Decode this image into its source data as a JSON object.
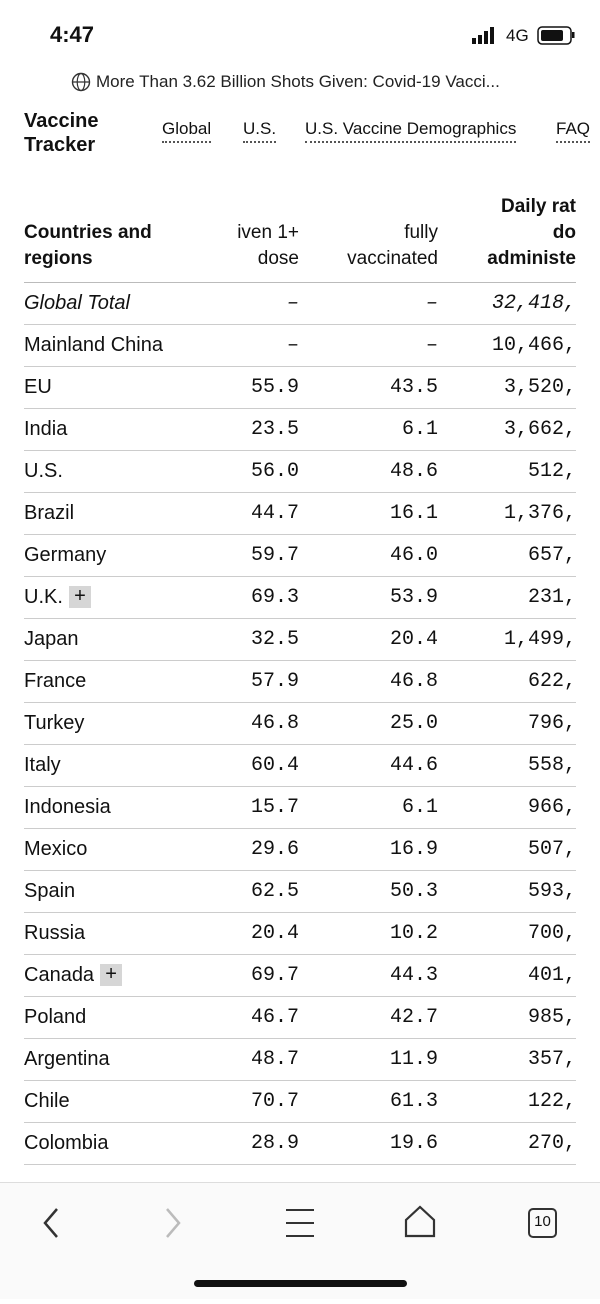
{
  "status": {
    "time": "4:47",
    "network": "4G"
  },
  "url_bar": {
    "title": "More Than 3.62 Billion Shots Given: Covid-19 Vacci..."
  },
  "nav": {
    "brand": [
      "Vaccine",
      "Tracker"
    ],
    "links": [
      "Global",
      "U.S.",
      "U.S. Vaccine Demographics",
      "FAQ"
    ]
  },
  "table": {
    "header": [
      [
        "Countries and",
        "regions"
      ],
      [
        "iven 1+",
        "dose"
      ],
      [
        "fully",
        "vaccinated"
      ],
      [
        "Daily rat",
        "do",
        "administe"
      ]
    ],
    "rows": [
      [
        "Global Total",
        "–",
        "–",
        "32,418,"
      ],
      [
        "Mainland China",
        "–",
        "–",
        "10,466,"
      ],
      [
        "EU",
        "55.9",
        "43.5",
        "3,520,"
      ],
      [
        "India",
        "23.5",
        "6.1",
        "3,662,"
      ],
      [
        "U.S.",
        "56.0",
        "48.6",
        "512,"
      ],
      [
        "Brazil",
        "44.7",
        "16.1",
        "1,376,"
      ],
      [
        "Germany",
        "59.7",
        "46.0",
        "657,"
      ],
      [
        "U.K.",
        "69.3",
        "53.9",
        "231,",
        "+"
      ],
      [
        "Japan",
        "32.5",
        "20.4",
        "1,499,"
      ],
      [
        "France",
        "57.9",
        "46.8",
        "622,"
      ],
      [
        "Turkey",
        "46.8",
        "25.0",
        "796,"
      ],
      [
        "Italy",
        "60.4",
        "44.6",
        "558,"
      ],
      [
        "Indonesia",
        "15.7",
        "6.1",
        "966,"
      ],
      [
        "Mexico",
        "29.6",
        "16.9",
        "507,"
      ],
      [
        "Spain",
        "62.5",
        "50.3",
        "593,"
      ],
      [
        "Russia",
        "20.4",
        "10.2",
        "700,"
      ],
      [
        "Canada",
        "69.7",
        "44.3",
        "401,",
        "+"
      ],
      [
        "Poland",
        "46.7",
        "42.7",
        "985,"
      ],
      [
        "Argentina",
        "48.7",
        "11.9",
        "357,"
      ],
      [
        "Chile",
        "70.7",
        "61.3",
        "122,"
      ],
      [
        "Colombia",
        "28.9",
        "19.6",
        "270,"
      ]
    ]
  },
  "toolbar": {
    "tabs": "10"
  }
}
